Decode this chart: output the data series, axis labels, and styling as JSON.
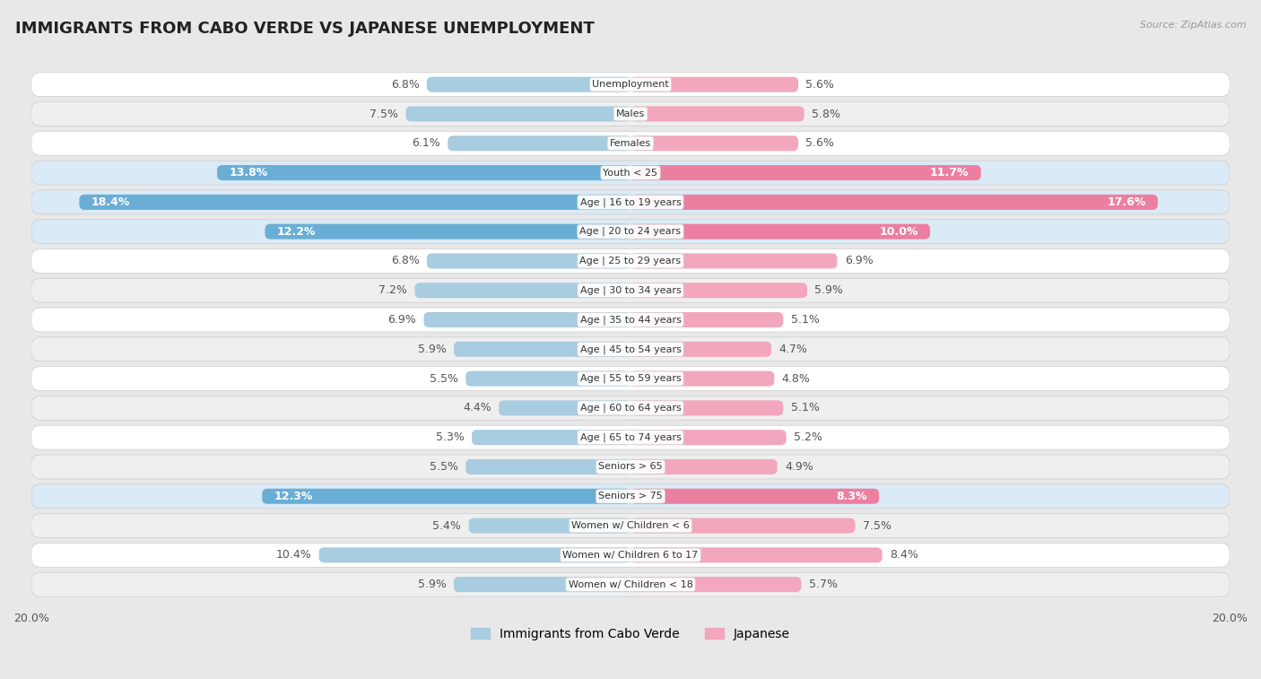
{
  "title": "IMMIGRANTS FROM CABO VERDE VS JAPANESE UNEMPLOYMENT",
  "source": "Source: ZipAtlas.com",
  "categories": [
    "Unemployment",
    "Males",
    "Females",
    "Youth < 25",
    "Age | 16 to 19 years",
    "Age | 20 to 24 years",
    "Age | 25 to 29 years",
    "Age | 30 to 34 years",
    "Age | 35 to 44 years",
    "Age | 45 to 54 years",
    "Age | 55 to 59 years",
    "Age | 60 to 64 years",
    "Age | 65 to 74 years",
    "Seniors > 65",
    "Seniors > 75",
    "Women w/ Children < 6",
    "Women w/ Children 6 to 17",
    "Women w/ Children < 18"
  ],
  "left_values": [
    6.8,
    7.5,
    6.1,
    13.8,
    18.4,
    12.2,
    6.8,
    7.2,
    6.9,
    5.9,
    5.5,
    4.4,
    5.3,
    5.5,
    12.3,
    5.4,
    10.4,
    5.9
  ],
  "right_values": [
    5.6,
    5.8,
    5.6,
    11.7,
    17.6,
    10.0,
    6.9,
    5.9,
    5.1,
    4.7,
    4.8,
    5.1,
    5.2,
    4.9,
    8.3,
    7.5,
    8.4,
    5.7
  ],
  "highlight_rows": [
    3,
    4,
    5,
    14
  ],
  "left_color_normal": "#a8cce0",
  "left_color_highlight": "#6aaed6",
  "right_color_normal": "#f2a7bc",
  "right_color_highlight": "#ec7fa0",
  "row_bg_white": "#ffffff",
  "row_bg_gray": "#efefef",
  "row_bg_blue_hi": "#daeaf6",
  "background_color": "#e8e8e8",
  "axis_max": 20.0,
  "left_label": "Immigrants from Cabo Verde",
  "right_label": "Japanese",
  "title_fontsize": 13,
  "value_fontsize": 9,
  "cat_fontsize": 8,
  "legend_fontsize": 10
}
